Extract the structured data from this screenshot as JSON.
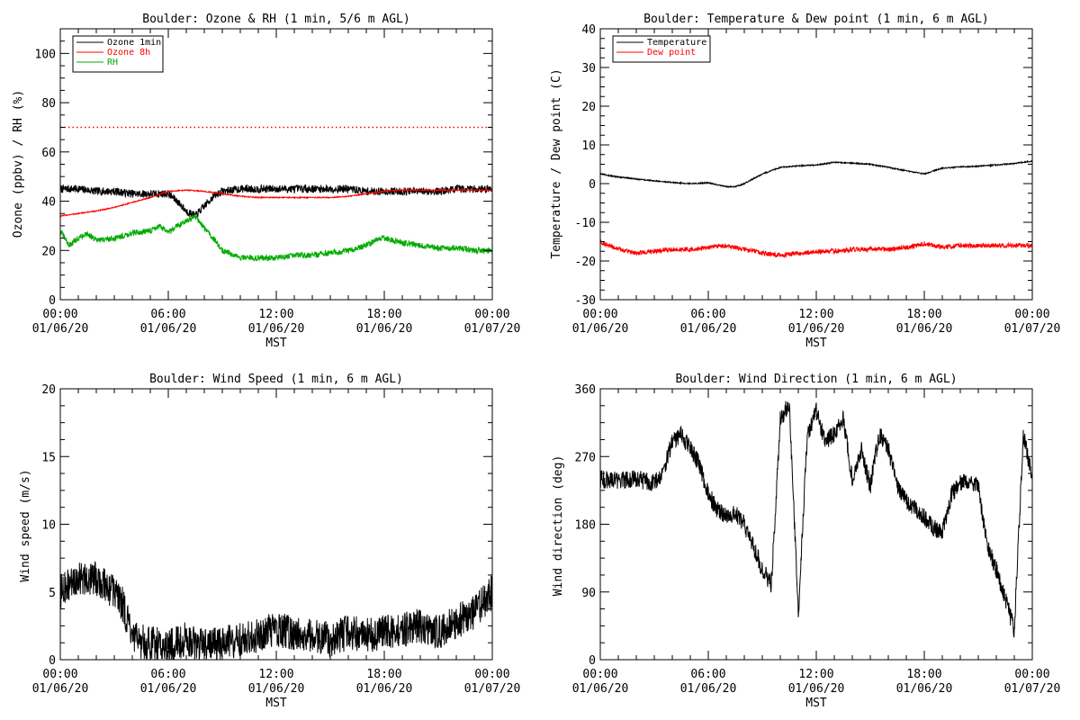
{
  "page": {
    "time_axis_name": "MST"
  },
  "time_ticks": [
    {
      "time": "00:00",
      "date": "01/06/20"
    },
    {
      "time": "06:00",
      "date": "01/06/20"
    },
    {
      "time": "12:00",
      "date": "01/06/20"
    },
    {
      "time": "18:00",
      "date": "01/06/20"
    },
    {
      "time": "00:00",
      "date": "01/07/20"
    }
  ],
  "chart_data": [
    {
      "type": "line",
      "title": "Boulder: Ozone & RH (1 min, 5/6 m AGL)",
      "xlabel": "MST",
      "ylabel": "Ozone (ppbv) / RH (%)",
      "xlim": [
        0,
        24
      ],
      "ylim": [
        0,
        110
      ],
      "yticks": [
        0,
        20,
        40,
        60,
        80,
        100
      ],
      "legend_position": "top-left",
      "reference_lines": [
        {
          "y": 70,
          "color": "#ff0000",
          "style": "dotted"
        }
      ],
      "series": [
        {
          "name": "Ozone 1min",
          "color": "#000000",
          "noise": 1.6,
          "x": [
            0,
            1,
            2,
            3,
            4,
            5,
            6,
            6.5,
            7,
            7.5,
            8,
            8.5,
            9,
            10,
            11,
            12,
            13,
            14,
            15,
            16,
            17,
            18,
            19,
            20,
            21,
            22,
            23,
            24
          ],
          "y": [
            45,
            45,
            44,
            44,
            43,
            43,
            43,
            40,
            36,
            34,
            38,
            42,
            44,
            45,
            45,
            45,
            45,
            45,
            45,
            45,
            44,
            44,
            44,
            44,
            44,
            45,
            45,
            45
          ]
        },
        {
          "name": "Ozone 8h",
          "color": "#ff0000",
          "noise": 0.2,
          "x": [
            0,
            1,
            2,
            3,
            4,
            5,
            6,
            7,
            8,
            9,
            10,
            11,
            12,
            13,
            14,
            15,
            16,
            17,
            18,
            19,
            20,
            21,
            22,
            23,
            24
          ],
          "y": [
            34,
            35,
            36,
            37.5,
            39.5,
            41.5,
            44,
            44.5,
            44,
            43,
            42,
            41.5,
            41.5,
            41.5,
            41.5,
            41.5,
            42,
            43,
            44,
            44.5,
            44.5,
            44.5,
            44.5,
            44.5,
            44.5
          ]
        },
        {
          "name": "RH",
          "color": "#00aa00",
          "noise": 1.2,
          "x": [
            0,
            0.5,
            1,
            1.5,
            2,
            3,
            4,
            5,
            5.5,
            6,
            6.5,
            7,
            7.5,
            8,
            8.5,
            9,
            10,
            11,
            12,
            13,
            14,
            15,
            16,
            17,
            17.5,
            18,
            19,
            20,
            21,
            22,
            23,
            24
          ],
          "y": [
            28,
            22,
            25,
            27,
            24,
            25,
            27,
            28,
            30,
            27,
            30,
            32,
            34,
            29,
            25,
            20,
            17,
            17,
            17,
            18,
            18,
            19,
            20,
            22,
            24,
            25,
            23,
            22,
            21,
            21,
            20,
            20
          ]
        }
      ]
    },
    {
      "type": "line",
      "title": "Boulder: Temperature & Dew point (1 min, 6 m AGL)",
      "xlabel": "MST",
      "ylabel": "Temperature / Dew point (C)",
      "xlim": [
        0,
        24
      ],
      "ylim": [
        -30,
        40
      ],
      "yticks": [
        -30,
        -20,
        -10,
        0,
        10,
        20,
        30,
        40
      ],
      "legend_position": "top-left",
      "series": [
        {
          "name": "Temperature",
          "color": "#000000",
          "noise": 0.15,
          "x": [
            0,
            1,
            2,
            3,
            4,
            5,
            6,
            7,
            7.5,
            8,
            9,
            10,
            11,
            12,
            13,
            14,
            15,
            16,
            17,
            18,
            19,
            20,
            21,
            22,
            23,
            24
          ],
          "y": [
            2.5,
            1.7,
            1.2,
            0.7,
            0.3,
            0,
            0.2,
            -0.8,
            -0.8,
            0,
            2.5,
            4.2,
            4.6,
            4.8,
            5.5,
            5.3,
            5,
            4.2,
            3.3,
            2.5,
            4,
            4.3,
            4.5,
            4.8,
            5.2,
            5.8
          ]
        },
        {
          "name": "Dew point",
          "color": "#ff0000",
          "noise": 0.6,
          "x": [
            0,
            0.5,
            1,
            2,
            3,
            4,
            5,
            6,
            7,
            8,
            9,
            10,
            11,
            12,
            13,
            14,
            15,
            16,
            17,
            18,
            19,
            20,
            21,
            22,
            23,
            24
          ],
          "y": [
            -15,
            -16,
            -17,
            -18,
            -17.5,
            -17,
            -17,
            -16.5,
            -16,
            -17,
            -18,
            -18.5,
            -18,
            -17.5,
            -17.5,
            -17,
            -17,
            -17,
            -16.5,
            -15.5,
            -16.5,
            -16,
            -16,
            -16,
            -16,
            -16
          ]
        }
      ]
    },
    {
      "type": "line",
      "title": "Boulder: Wind Speed (1 min, 6 m AGL)",
      "xlabel": "MST",
      "ylabel": "Wind speed (m/s)",
      "xlim": [
        0,
        24
      ],
      "ylim": [
        0,
        20
      ],
      "yticks": [
        0,
        5,
        10,
        15,
        20
      ],
      "series": [
        {
          "name": "",
          "color": "#000000",
          "noise": 1.3,
          "x": [
            0,
            1,
            2,
            3,
            3.5,
            4,
            5,
            6,
            7,
            8,
            9,
            10,
            11,
            12,
            13,
            14,
            15,
            16,
            17,
            18,
            19,
            20,
            21,
            22,
            23,
            24
          ],
          "y": [
            5,
            6,
            6,
            5,
            4,
            1.5,
            1.2,
            1,
            1.5,
            1,
            1.2,
            1.5,
            1.8,
            2.2,
            2,
            1.8,
            1.5,
            2,
            1.8,
            2,
            2.2,
            2.5,
            2,
            2.8,
            3.5,
            5
          ]
        }
      ]
    },
    {
      "type": "line",
      "title": "Boulder: Wind Direction (1 min, 6 m AGL)",
      "xlabel": "MST",
      "ylabel": "Wind direction (deg)",
      "xlim": [
        0,
        24
      ],
      "ylim": [
        0,
        360
      ],
      "yticks": [
        0,
        90,
        180,
        270,
        360
      ],
      "series": [
        {
          "name": "",
          "color": "#000000",
          "noise": 12,
          "wrap": true,
          "x": [
            0,
            1,
            2,
            3,
            3.5,
            4,
            4.5,
            5,
            5.5,
            6,
            6.5,
            7,
            7.5,
            8,
            8.5,
            9,
            9.5,
            10,
            10.5,
            11,
            11.5,
            12,
            12.5,
            13,
            13.5,
            14,
            14.5,
            15,
            15.5,
            16,
            16.5,
            17,
            17.5,
            18,
            18.5,
            19,
            19.5,
            20,
            20.5,
            21,
            21.5,
            22,
            22.5,
            23,
            23.5,
            24
          ],
          "y": [
            240,
            238,
            240,
            235,
            250,
            290,
            300,
            280,
            260,
            220,
            200,
            190,
            195,
            180,
            150,
            120,
            100,
            320,
            340,
            60,
            300,
            330,
            290,
            300,
            320,
            240,
            280,
            230,
            300,
            280,
            230,
            210,
            200,
            190,
            175,
            170,
            220,
            235,
            240,
            230,
            150,
            120,
            80,
            40,
            300,
            240
          ]
        }
      ]
    }
  ]
}
